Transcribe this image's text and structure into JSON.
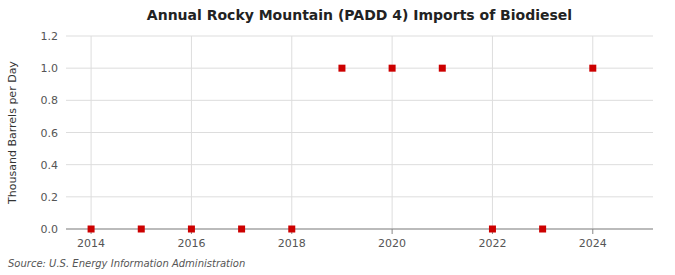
{
  "chart_data": {
    "type": "scatter",
    "title": "Annual Rocky Mountain (PADD 4) Imports of Biodiesel",
    "ylabel": "Thousand Barrels per Day",
    "annotations": [
      "Source: U.S. Energy Information Administration"
    ],
    "x": [
      2014,
      2015,
      2016,
      2017,
      2018,
      2019,
      2020,
      2021,
      2022,
      2023,
      2024
    ],
    "values": [
      0.0,
      0.0,
      0.0,
      0.0,
      0.0,
      1.0,
      1.0,
      1.0,
      0.0,
      0.0,
      1.0
    ],
    "xlim": [
      2013.5,
      2025.2
    ],
    "ylim": [
      0.0,
      1.2
    ],
    "xticks": [
      2014,
      2016,
      2018,
      2020,
      2022,
      2024
    ],
    "yticks": [
      {
        "value": 0.0,
        "label": "0.0"
      },
      {
        "value": 0.2,
        "label": "0.2"
      },
      {
        "value": 0.4,
        "label": "0.4"
      },
      {
        "value": 0.6,
        "label": "0.6"
      },
      {
        "value": 0.8,
        "label": "0.8"
      },
      {
        "value": 1.0,
        "label": "1.0"
      },
      {
        "value": 1.2,
        "label": "1.2"
      }
    ],
    "color": "#cc0000",
    "marker": "square",
    "grid": true
  }
}
